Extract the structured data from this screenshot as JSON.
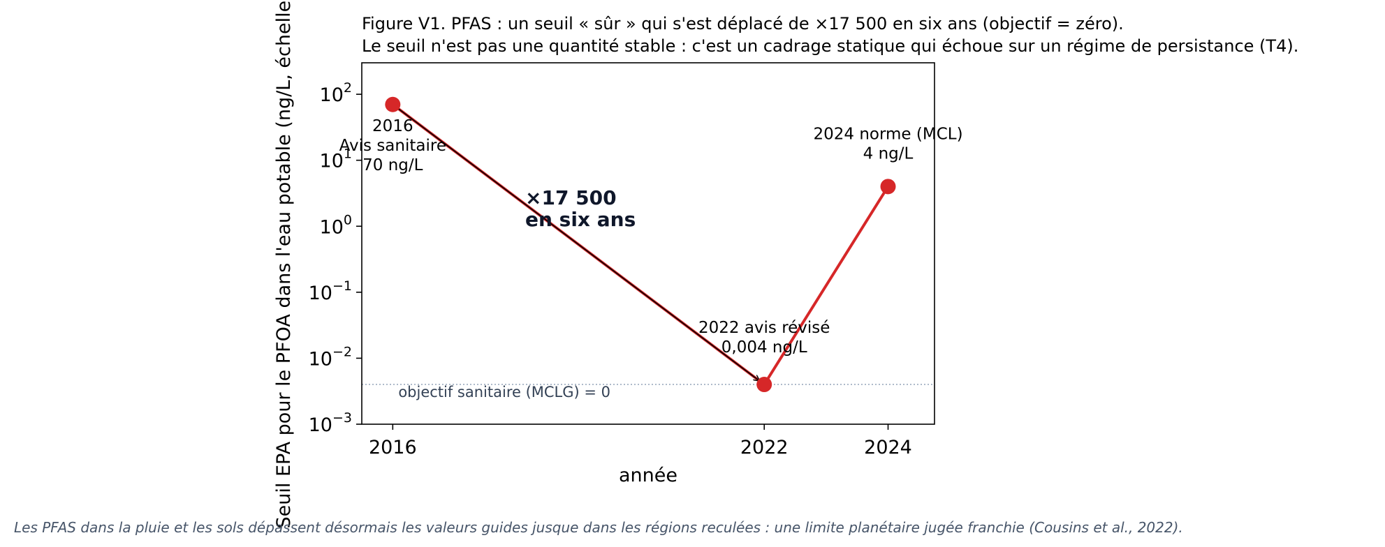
{
  "chart_data": {
    "type": "line",
    "title": "Figure V1. PFAS : un seuil « sûr » qui s'est déplacé de ×17 500 en six ans (objectif = zéro).",
    "subtitle": "Le seuil n'est pas une quantité stable : c'est un cadrage statique qui échoue sur un régime de persistance (T4).",
    "xlabel": "année",
    "ylabel": "Seuil EPA pour le PFOA dans l'eau potable (ng/L, échelle log)",
    "yscale": "log",
    "ylim": [
      0.001,
      300
    ],
    "xlim": [
      2015.5,
      2024.75
    ],
    "grid": false,
    "x_ticks": [
      {
        "value": 2016,
        "label": "2016"
      },
      {
        "value": 2022,
        "label": "2022"
      },
      {
        "value": 2024,
        "label": "2024"
      }
    ],
    "y_ticks": [
      {
        "exp": -3,
        "base": "10",
        "sup": "−3"
      },
      {
        "exp": -2,
        "base": "10",
        "sup": "−2"
      },
      {
        "exp": -1,
        "base": "10",
        "sup": "−1"
      },
      {
        "exp": 0,
        "base": "10",
        "sup": "0"
      },
      {
        "exp": 1,
        "base": "10",
        "sup": "1"
      },
      {
        "exp": 2,
        "base": "10",
        "sup": "2"
      }
    ],
    "series": [
      {
        "color": "#d62728",
        "points": [
          {
            "x": 2016,
            "y": 70,
            "label": [
              "2016",
              "Avis sanitaire",
              "70 ng/L"
            ]
          },
          {
            "x": 2022,
            "y": 0.004,
            "label": [
              "2022 avis révisé",
              "0,004 ng/L"
            ]
          },
          {
            "x": 2024,
            "y": 4,
            "label": [
              "2024 norme (MCL)",
              "4 ng/L"
            ]
          }
        ]
      }
    ],
    "reference_line": {
      "y": 0.004,
      "label": "objectif sanitaire (MCLG) = 0",
      "color": "#94a3b8"
    },
    "arrow_annotation": {
      "from": {
        "x": 2016,
        "y": 70
      },
      "to": {
        "x": 2022,
        "y": 0.004
      },
      "text": [
        "×17 500",
        "en six ans"
      ]
    }
  },
  "footnote": "Les PFAS dans la pluie et les sols dépassent désormais les valeurs guides jusque dans les régions reculées : une limite planétaire jugée franchie (Cousins et al., 2022)."
}
